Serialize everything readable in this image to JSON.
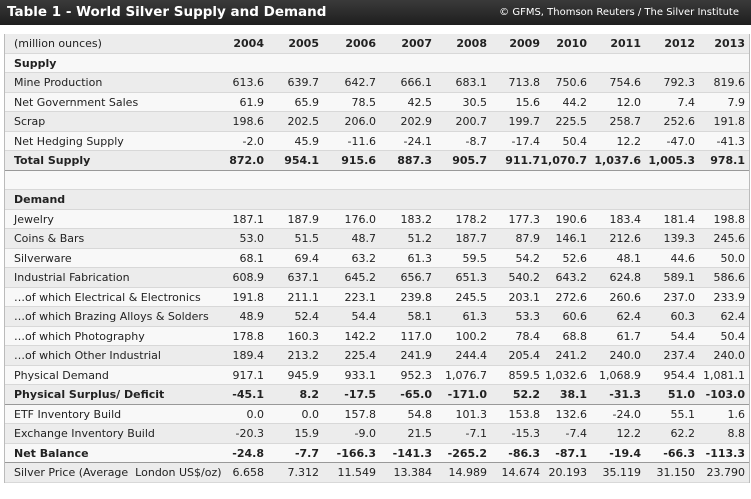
{
  "header": {
    "title": "Table 1 - World Silver Supply and Demand",
    "source": "© GFMS, Thomson Reuters / The Silver Institute"
  },
  "table": {
    "unit": "(million ounces)",
    "years": [
      "2004",
      "2005",
      "2006",
      "2007",
      "2008",
      "2009",
      "2010",
      "2011",
      "2012",
      "2013"
    ],
    "sections": [
      {
        "title": "Supply",
        "rows": [
          {
            "label": "Mine Production",
            "values": [
              "613.6",
              "639.7",
              "642.7",
              "666.1",
              "683.1",
              "713.8",
              "750.6",
              "754.6",
              "792.3",
              "819.6"
            ]
          },
          {
            "label": "Net Government Sales",
            "values": [
              "61.9",
              "65.9",
              "78.5",
              "42.5",
              "30.5",
              "15.6",
              "44.2",
              "12.0",
              "7.4",
              "7.9"
            ]
          },
          {
            "label": "Scrap",
            "values": [
              "198.6",
              "202.5",
              "206.0",
              "202.9",
              "200.7",
              "199.7",
              "225.5",
              "258.7",
              "252.6",
              "191.8"
            ]
          },
          {
            "label": "Net Hedging Supply",
            "values": [
              "-2.0",
              "45.9",
              "-11.6",
              "-24.1",
              "-8.7",
              "-17.4",
              "50.4",
              "12.2",
              "-47.0",
              "-41.3"
            ]
          },
          {
            "label": "Total Supply",
            "bold": true,
            "values": [
              "872.0",
              "954.1",
              "915.6",
              "887.3",
              "905.7",
              "911.7",
              "1,070.7",
              "1,037.6",
              "1,005.3",
              "978.1"
            ]
          }
        ]
      },
      {
        "title": "Demand",
        "rows": [
          {
            "label": "Jewelry",
            "values": [
              "187.1",
              "187.9",
              "176.0",
              "183.2",
              "178.2",
              "177.3",
              "190.6",
              "183.4",
              "181.4",
              "198.8"
            ]
          },
          {
            "label": "Coins & Bars",
            "values": [
              "53.0",
              "51.5",
              "48.7",
              "51.2",
              "187.7",
              "87.9",
              "146.1",
              "212.6",
              "139.3",
              "245.6"
            ]
          },
          {
            "label": "Silverware",
            "values": [
              "68.1",
              "69.4",
              "63.2",
              "61.3",
              "59.5",
              "54.2",
              "52.6",
              "48.1",
              "44.6",
              "50.0"
            ]
          },
          {
            "label": "Industrial Fabrication",
            "values": [
              "608.9",
              "637.1",
              "645.2",
              "656.7",
              "651.3",
              "540.2",
              "643.2",
              "624.8",
              "589.1",
              "586.6"
            ]
          },
          {
            "label": "…of which Electrical & Electronics",
            "values": [
              "191.8",
              "211.1",
              "223.1",
              "239.8",
              "245.5",
              "203.1",
              "272.6",
              "260.6",
              "237.0",
              "233.9"
            ]
          },
          {
            "label": "…of which Brazing Alloys & Solders",
            "values": [
              "48.9",
              "52.4",
              "54.4",
              "58.1",
              "61.3",
              "53.3",
              "60.6",
              "62.4",
              "60.3",
              "62.4"
            ]
          },
          {
            "label": "…of which Photography",
            "values": [
              "178.8",
              "160.3",
              "142.2",
              "117.0",
              "100.2",
              "78.4",
              "68.8",
              "61.7",
              "54.4",
              "50.4"
            ]
          },
          {
            "label": "…of which Other Industrial",
            "values": [
              "189.4",
              "213.2",
              "225.4",
              "241.9",
              "244.4",
              "205.4",
              "241.2",
              "240.0",
              "237.4",
              "240.0"
            ]
          },
          {
            "label": "Physical Demand",
            "values": [
              "917.1",
              "945.9",
              "933.1",
              "952.3",
              "1,076.7",
              "859.5",
              "1,032.6",
              "1,068.9",
              "954.4",
              "1,081.1"
            ]
          },
          {
            "label": "Physical Surplus/ Deficit",
            "bold": true,
            "values": [
              "-45.1",
              "8.2",
              "-17.5",
              "-65.0",
              "-171.0",
              "52.2",
              "38.1",
              "-31.3",
              "51.0",
              "-103.0"
            ]
          },
          {
            "label": "ETF Inventory Build",
            "values": [
              "0.0",
              "0.0",
              "157.8",
              "54.8",
              "101.3",
              "153.8",
              "132.6",
              "-24.0",
              "55.1",
              "1.6"
            ]
          },
          {
            "label": "Exchange Inventory Build",
            "values": [
              "-20.3",
              "15.9",
              "-9.0",
              "21.5",
              "-7.1",
              "-15.3",
              "-7.4",
              "12.2",
              "62.2",
              "8.8"
            ]
          },
          {
            "label": "Net Balance",
            "bold": true,
            "values": [
              "-24.8",
              "-7.7",
              "-166.3",
              "-141.3",
              "-265.2",
              "-86.3",
              "-87.1",
              "-19.4",
              "-66.3",
              "-113.3"
            ]
          },
          {
            "label": "Silver Price (Average  London US$/oz)",
            "values": [
              "6.658",
              "7.312",
              "11.549",
              "13.384",
              "14.989",
              "14.674",
              "20.193",
              "35.119",
              "31.150",
              "23.790"
            ]
          }
        ]
      }
    ]
  }
}
